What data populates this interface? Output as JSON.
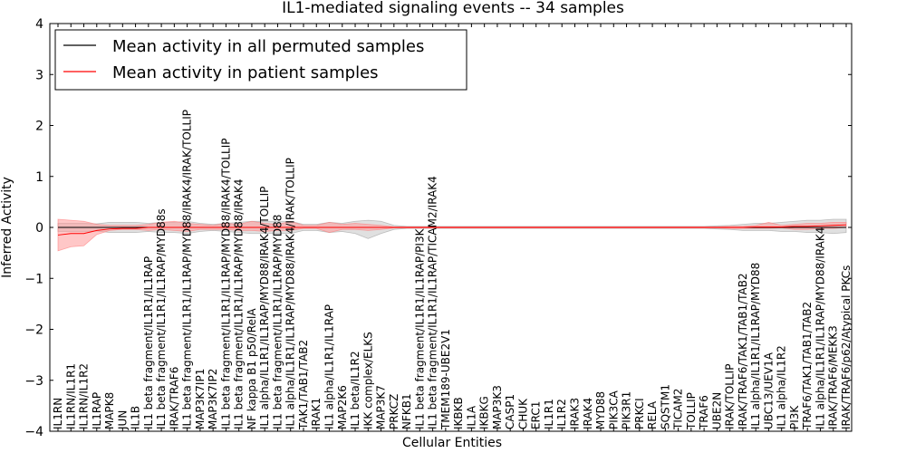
{
  "chart_data": {
    "type": "line",
    "title": "IL1-mediated signaling events -- 34 samples",
    "xlabel": "Cellular Entities",
    "ylabel": "Inferred Activity",
    "ylim": [
      -4,
      4
    ],
    "yticks": [
      -4,
      -3,
      -2,
      -1,
      0,
      1,
      2,
      3,
      4
    ],
    "grid": false,
    "legend_position": "top-left",
    "colors": {
      "permuted": "#000000",
      "patient": "#ff0000",
      "band_permuted": "#bbbbbb",
      "band_patient": "#ff9999"
    },
    "categories": [
      "IL1RN",
      "IL1RN/IL1R1",
      "IL1RN/IL1R2",
      "IL1RAP",
      "MAPK8",
      "JUN",
      "IL1B",
      "IL1 beta fragment/IL1R1/IL1RAP",
      "IL1 beta fragment/IL1R1/IL1RAP/MYD88s",
      "IRAK/TRAF6",
      "IL1 beta fragment/IL1R1/IL1RAP/MYD88/IRAK4/IRAK/TOLLIP",
      "MAP3K7IP1",
      "MAP3K7IP2",
      "IL1 beta fragment/IL1R1/IL1RAP/MYD88/IRAK4/TOLLIP",
      "IL1 beta fragment/IL1R1/IL1RAP/MYD88/IRAK4",
      "NF kappa B1 p50/RelA",
      "IL1 alpha/IL1R1/IL1RAP/MYD88/IRAK4/TOLLIP",
      "IL1 beta fragment/IL1R1/IL1RAP/MYD88",
      "IL1 alpha/IL1R1/IL1RAP/MYD88/IRAK4/IRAK/TOLLIP",
      "TAK1/TAB1/TAB2",
      "IRAK1",
      "IL1 alpha/IL1R1/IL1RAP",
      "MAP2K6",
      "IL1 beta/IL1R2",
      "IKK complex/ELKS",
      "MAP3K7",
      "PRKCZ",
      "NFKB1",
      "IL1 beta fragment/IL1R1/IL1RAP/PI3K",
      "IL1 beta fragment/IL1R1/IL1RAP/TICAM2/IRAK4",
      "TMEM189-UBE2V1",
      "IKBKB",
      "IL1A",
      "IKBKG",
      "MAP3K3",
      "CASP1",
      "CHUK",
      "ERC1",
      "IL1R1",
      "IL1R2",
      "IRAK3",
      "IRAK4",
      "MYD88",
      "PIK3CA",
      "PIK3R1",
      "PRKCI",
      "RELA",
      "SQSTM1",
      "TICAM2",
      "TOLLIP",
      "TRAF6",
      "UBE2N",
      "IRAK/TOLLIP",
      "IRAK/TRAF6/TAK1/TAB1/TAB2",
      "IL1 alpha/IL1R1/IL1RAP/MYD88",
      "UBC13/UEV1A",
      "IL1 alpha/IL1R2",
      "PI3K",
      "TRAF6/TAK1/TAB1/TAB2",
      "IL1 alpha/IL1R1/IL1RAP/MYD88/IRAK4",
      "IRAK/TRAF6/MEKK3",
      "IRAK/TRAF6/p62/Atypical PKCs"
    ],
    "series": [
      {
        "name": "Mean activity in all permuted samples",
        "values": [
          0,
          0,
          0,
          0,
          0,
          0,
          0,
          0,
          0,
          0,
          0,
          0,
          0,
          0,
          0,
          0,
          0,
          0,
          0,
          0,
          0,
          0,
          0,
          0,
          0,
          0,
          0,
          0,
          0,
          0,
          0,
          0,
          0,
          0,
          0,
          0,
          0,
          0,
          0,
          0,
          0,
          0,
          0,
          0,
          0,
          0,
          0,
          0,
          0,
          0,
          0,
          0,
          0,
          0,
          0,
          0,
          0,
          0,
          0,
          0,
          0,
          0
        ],
        "lower": [
          -0.08,
          -0.08,
          -0.08,
          -0.07,
          -0.1,
          -0.1,
          -0.1,
          -0.08,
          -0.1,
          -0.1,
          -0.12,
          -0.08,
          -0.06,
          -0.08,
          -0.1,
          -0.12,
          -0.12,
          -0.12,
          -0.12,
          -0.06,
          -0.06,
          -0.1,
          -0.08,
          -0.12,
          -0.22,
          -0.12,
          -0.04,
          -0.02,
          -0.02,
          -0.02,
          -0.02,
          -0.02,
          -0.02,
          -0.02,
          -0.02,
          -0.02,
          -0.02,
          -0.02,
          -0.02,
          -0.02,
          -0.02,
          -0.02,
          -0.02,
          -0.02,
          -0.02,
          -0.02,
          -0.02,
          -0.02,
          -0.02,
          -0.02,
          -0.02,
          -0.03,
          -0.04,
          -0.06,
          -0.06,
          -0.06,
          -0.08,
          -0.08,
          -0.1,
          -0.1,
          -0.12,
          -0.1
        ],
        "upper": [
          0.08,
          0.08,
          0.08,
          0.07,
          0.1,
          0.1,
          0.1,
          0.08,
          0.1,
          0.1,
          0.12,
          0.08,
          0.06,
          0.08,
          0.1,
          0.12,
          0.12,
          0.12,
          0.12,
          0.06,
          0.06,
          0.1,
          0.08,
          0.12,
          0.14,
          0.12,
          0.04,
          0.02,
          0.02,
          0.02,
          0.02,
          0.02,
          0.02,
          0.02,
          0.02,
          0.02,
          0.02,
          0.02,
          0.02,
          0.02,
          0.02,
          0.02,
          0.02,
          0.02,
          0.02,
          0.02,
          0.02,
          0.02,
          0.02,
          0.02,
          0.02,
          0.03,
          0.04,
          0.06,
          0.08,
          0.08,
          0.1,
          0.12,
          0.14,
          0.14,
          0.16,
          0.16
        ]
      },
      {
        "name": "Mean activity in patient samples",
        "values": [
          -0.15,
          -0.12,
          -0.12,
          -0.06,
          -0.03,
          -0.02,
          -0.02,
          0.0,
          0.0,
          0.0,
          0.0,
          0.0,
          0.0,
          0.0,
          0.0,
          0.0,
          0.0,
          0.0,
          0.0,
          0.0,
          0.0,
          0.0,
          0.0,
          0.0,
          0.0,
          0.0,
          0.0,
          0.0,
          0.0,
          0.0,
          0.0,
          0.0,
          0.0,
          0.0,
          0.0,
          0.0,
          0.0,
          0.0,
          0.0,
          0.0,
          0.0,
          0.0,
          0.0,
          0.0,
          0.0,
          0.0,
          0.0,
          0.0,
          0.0,
          0.0,
          0.0,
          0.0,
          0.0,
          0.0,
          0.01,
          0.01,
          0.01,
          0.02,
          0.02,
          0.03,
          0.04,
          0.05
        ],
        "lower": [
          -0.46,
          -0.38,
          -0.36,
          -0.14,
          -0.06,
          -0.04,
          -0.04,
          -0.06,
          -0.04,
          -0.06,
          -0.08,
          -0.04,
          -0.04,
          -0.04,
          -0.06,
          -0.06,
          -0.08,
          -0.06,
          -0.06,
          -0.02,
          -0.02,
          -0.1,
          -0.04,
          -0.04,
          -0.06,
          -0.04,
          -0.01,
          -0.01,
          -0.01,
          -0.01,
          -0.01,
          -0.01,
          -0.01,
          -0.01,
          -0.01,
          -0.01,
          -0.01,
          -0.01,
          -0.01,
          -0.01,
          -0.01,
          -0.01,
          -0.01,
          -0.01,
          -0.01,
          -0.01,
          -0.01,
          -0.01,
          -0.01,
          -0.01,
          -0.01,
          -0.01,
          -0.02,
          -0.02,
          -0.02,
          -0.02,
          -0.01,
          -0.04,
          -0.04,
          -0.02,
          -0.02,
          0.0
        ],
        "upper": [
          0.16,
          0.14,
          0.12,
          0.06,
          0.04,
          0.04,
          0.04,
          0.06,
          0.1,
          0.12,
          0.08,
          0.06,
          0.04,
          0.08,
          0.06,
          0.12,
          0.08,
          0.06,
          0.12,
          0.04,
          0.04,
          0.1,
          0.06,
          0.08,
          0.06,
          0.04,
          0.01,
          0.01,
          0.01,
          0.01,
          0.01,
          0.01,
          0.01,
          0.01,
          0.01,
          0.01,
          0.01,
          0.01,
          0.01,
          0.01,
          0.01,
          0.01,
          0.01,
          0.01,
          0.01,
          0.01,
          0.01,
          0.01,
          0.01,
          0.01,
          0.01,
          0.01,
          0.02,
          0.02,
          0.04,
          0.1,
          0.04,
          0.06,
          0.08,
          0.08,
          0.1,
          0.1
        ]
      }
    ]
  }
}
